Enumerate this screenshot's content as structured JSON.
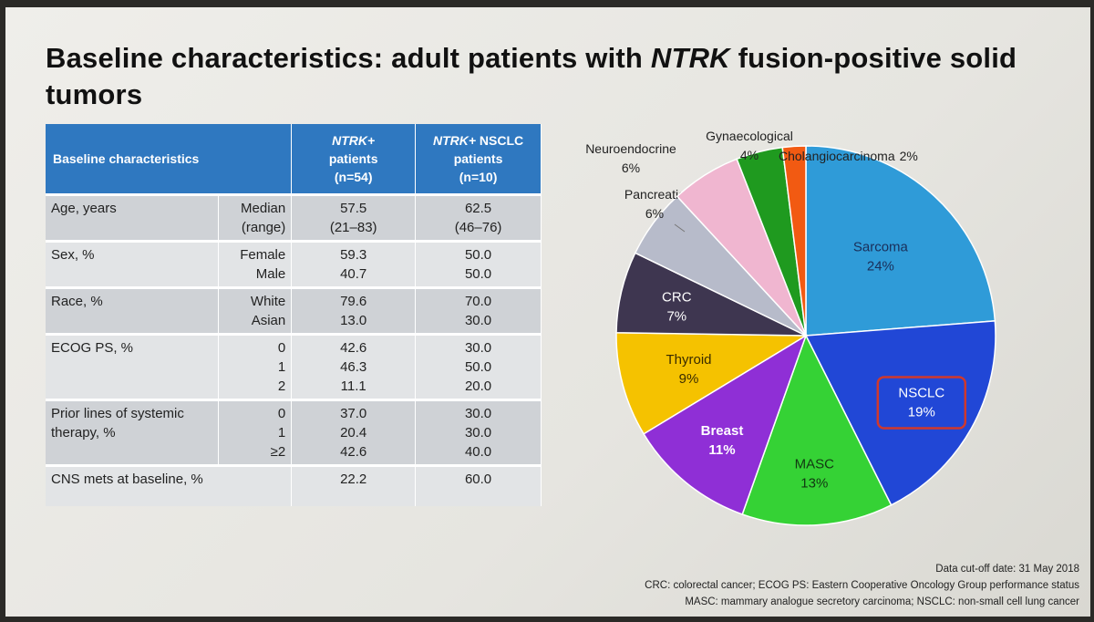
{
  "title": {
    "part1": "Baseline characteristics: adult patients with ",
    "part2": "NTRK",
    "part3": " fusion-positive solid tumors"
  },
  "table": {
    "headers": {
      "col1": "Baseline characteristics",
      "col2_ital": "NTRK+",
      "col2_line2": "patients",
      "col2_line3": "(n=54)",
      "col3_ital": "NTRK+",
      "col3_rest": " NSCLC",
      "col3_line2": "patients",
      "col3_line3": "(n=10)"
    },
    "rows": [
      {
        "label": [
          "Age, years"
        ],
        "subs": [
          "Median",
          "(range)"
        ],
        "a": [
          "57.5",
          "(21–83)"
        ],
        "b": [
          "62.5",
          "(46–76)"
        ]
      },
      {
        "label": [
          "Sex, %"
        ],
        "subs": [
          "Female",
          "Male"
        ],
        "a": [
          "59.3",
          "40.7"
        ],
        "b": [
          "50.0",
          "50.0"
        ]
      },
      {
        "label": [
          "Race, %"
        ],
        "subs": [
          "White",
          "Asian"
        ],
        "a": [
          "79.6",
          "13.0"
        ],
        "b": [
          "70.0",
          "30.0"
        ]
      },
      {
        "label": [
          "ECOG PS, %"
        ],
        "subs": [
          "0",
          "1",
          "2"
        ],
        "a": [
          "42.6",
          "46.3",
          "11.1"
        ],
        "b": [
          "30.0",
          "50.0",
          "20.0"
        ]
      },
      {
        "label": [
          "Prior lines of systemic",
          "therapy, %"
        ],
        "subs": [
          "0",
          "1",
          "≥2"
        ],
        "a": [
          "37.0",
          "20.4",
          "42.6"
        ],
        "b": [
          "30.0",
          "30.0",
          "40.0"
        ]
      },
      {
        "label": [
          "CNS mets at baseline, %"
        ],
        "subs": [],
        "a": [
          "22.2"
        ],
        "b": [
          "60.0"
        ]
      }
    ]
  },
  "chart_data": {
    "type": "pie",
    "start_angle_deg": 0,
    "direction": "clockwise",
    "slices": [
      {
        "label": "Sarcoma",
        "value_label": "24%",
        "value": 24,
        "color": "#2f9bd8",
        "text_color": "#1a2f5a"
      },
      {
        "label": "NSCLC",
        "value_label": "19%",
        "value": 19,
        "color": "#2147d6",
        "text_color": "#ffffff",
        "highlight": true
      },
      {
        "label": "MASC",
        "value_label": "13%",
        "value": 13,
        "color": "#35d235",
        "text_color": "#123812"
      },
      {
        "label": "Breast",
        "value_label": "11%",
        "value": 11,
        "color": "#8f2fd6",
        "text_color": "#ffffff"
      },
      {
        "label": "Thyroid",
        "value_label": "9%",
        "value": 9,
        "color": "#f5c200",
        "text_color": "#3a2c00"
      },
      {
        "label": "CRC",
        "value_label": "7%",
        "value": 7,
        "color": "#3e3650",
        "text_color": "#ffffff"
      },
      {
        "label": "Pancreatic",
        "value_label": "6%",
        "value": 6,
        "color": "#b7bbca",
        "text_color": "#222222"
      },
      {
        "label": "Neuroendocrine",
        "value_label": "6%",
        "value": 6,
        "color": "#f0b6d0",
        "text_color": "#222222"
      },
      {
        "label": "Gynaecological",
        "value_label": "4%",
        "value": 4,
        "color": "#1f9a1f",
        "text_color": "#222222"
      },
      {
        "label": "Cholangiocarcinoma",
        "value_label": "2%",
        "value": 2,
        "color": "#f25a12",
        "text_color": "#222222"
      }
    ]
  },
  "footnotes": [
    "Data cut-off date: 31 May 2018",
    "CRC: colorectal cancer; ECOG PS: Eastern Cooperative Oncology Group performance status",
    "MASC: mammary analogue secretory carcinoma; NSCLC: non-small cell lung cancer"
  ]
}
